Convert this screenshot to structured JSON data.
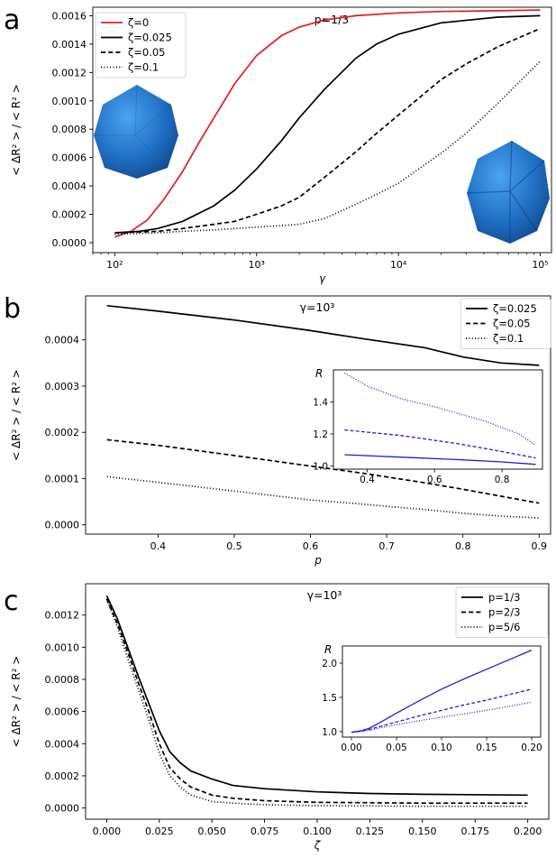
{
  "chart_data": [
    {
      "panel": "a",
      "type": "line",
      "title": "p=1/3",
      "xlabel": "γ",
      "ylabel": "< ΔR² > / < R² >",
      "xscale": "log",
      "xlim": [
        70,
        120000
      ],
      "ylim": [
        -7e-05,
        0.00166
      ],
      "x_tick_labels": [
        "10²",
        "10³",
        "10⁴",
        "10⁵"
      ],
      "x_ticks": [
        100,
        1000,
        10000,
        100000
      ],
      "y_ticks": [
        0.0,
        0.0002,
        0.0004,
        0.0006,
        0.0008,
        0.001,
        0.0012,
        0.0014,
        0.0016
      ],
      "y_tick_labels": [
        "0.0000",
        "0.0002",
        "0.0004",
        "0.0006",
        "0.0008",
        "0.0010",
        "0.0012",
        "0.0014",
        "0.0016"
      ],
      "legend_position": "top-left",
      "series": [
        {
          "name": "ζ=0",
          "color": "#e8191f",
          "dash": "solid",
          "x": [
            100,
            130,
            170,
            220,
            300,
            400,
            500,
            700,
            1000,
            1500,
            2000,
            3000,
            5000,
            10000,
            20000,
            50000,
            100000
          ],
          "y": [
            4e-05,
            8e-05,
            0.00016,
            0.0003,
            0.0005,
            0.00072,
            0.00088,
            0.00112,
            0.00132,
            0.00146,
            0.00152,
            0.00157,
            0.0016,
            0.00162,
            0.00163,
            0.001635,
            0.00164
          ]
        },
        {
          "name": "ζ=0.025",
          "color": "#000000",
          "dash": "solid",
          "x": [
            100,
            150,
            200,
            300,
            500,
            700,
            1000,
            1500,
            2000,
            3000,
            5000,
            7000,
            10000,
            20000,
            50000,
            100000
          ],
          "y": [
            7e-05,
            8e-05,
            0.0001,
            0.00015,
            0.00026,
            0.00037,
            0.00052,
            0.00072,
            0.00088,
            0.00108,
            0.0013,
            0.0014,
            0.00147,
            0.00155,
            0.00159,
            0.0016
          ]
        },
        {
          "name": "ζ=0.05",
          "color": "#000000",
          "dash": "dashed",
          "x": [
            100,
            200,
            300,
            500,
            700,
            1000,
            1500,
            2000,
            3000,
            5000,
            7000,
            10000,
            20000,
            30000,
            50000,
            100000
          ],
          "y": [
            7e-05,
            8e-05,
            0.0001,
            0.00013,
            0.00015,
            0.0002,
            0.00026,
            0.00032,
            0.00046,
            0.00064,
            0.00077,
            0.0009,
            0.00115,
            0.00126,
            0.00138,
            0.00151
          ]
        },
        {
          "name": "ζ=0.1",
          "color": "#000000",
          "dash": "dotted",
          "x": [
            100,
            200,
            300,
            500,
            700,
            1000,
            1500,
            2000,
            3000,
            5000,
            7000,
            10000,
            20000,
            30000,
            50000,
            100000
          ],
          "y": [
            6e-05,
            7e-05,
            8e-05,
            9e-05,
            0.0001,
            0.00011,
            0.00012,
            0.00013,
            0.00017,
            0.00027,
            0.00034,
            0.00042,
            0.00063,
            0.00077,
            0.00098,
            0.00128
          ]
        }
      ]
    },
    {
      "panel": "b",
      "type": "line",
      "title": "γ=10³",
      "xlabel": "p",
      "ylabel": "< ΔR² > / < R² >",
      "xlim": [
        0.305,
        0.915
      ],
      "ylim": [
        -2e-05,
        0.000495
      ],
      "x_ticks": [
        0.4,
        0.5,
        0.6,
        0.7,
        0.8,
        0.9
      ],
      "x_tick_labels": [
        "0.4",
        "0.5",
        "0.6",
        "0.7",
        "0.8",
        "0.9"
      ],
      "y_ticks": [
        0.0,
        0.0001,
        0.0002,
        0.0003,
        0.0004
      ],
      "y_tick_labels": [
        "0.0000",
        "0.0001",
        "0.0002",
        "0.0003",
        "0.0004"
      ],
      "legend_position": "top-right",
      "series": [
        {
          "name": "ζ=0.025",
          "color": "#000000",
          "dash": "solid",
          "x": [
            0.333,
            0.4,
            0.5,
            0.6,
            0.667,
            0.75,
            0.8,
            0.85,
            0.9
          ],
          "y": [
            0.000474,
            0.000462,
            0.000443,
            0.00042,
            0.000403,
            0.000383,
            0.000363,
            0.00035,
            0.000345
          ]
        },
        {
          "name": "ζ=0.05",
          "color": "#000000",
          "dash": "dashed",
          "x": [
            0.333,
            0.4,
            0.5,
            0.6,
            0.667,
            0.75,
            0.8,
            0.85,
            0.9
          ],
          "y": [
            0.000184,
            0.000172,
            0.00015,
            0.000127,
            0.000112,
            9.1e-05,
            7.7e-05,
            6.2e-05,
            4.7e-05
          ]
        },
        {
          "name": "ζ=0.1",
          "color": "#000000",
          "dash": "dotted",
          "x": [
            0.333,
            0.4,
            0.5,
            0.6,
            0.667,
            0.75,
            0.8,
            0.85,
            0.9
          ],
          "y": [
            0.000104,
            9.2e-05,
            7.3e-05,
            5.4e-05,
            4.5e-05,
            3.3e-05,
            2.5e-05,
            1.9e-05,
            1.5e-05
          ]
        }
      ],
      "inset": {
        "ylabel": "R",
        "xlim": [
          0.3,
          0.92
        ],
        "ylim": [
          0.98,
          1.6
        ],
        "x_ticks": [
          0.4,
          0.6,
          0.8
        ],
        "x_tick_labels": [
          "0.4",
          "0.6",
          "0.8"
        ],
        "y_ticks": [
          1.0,
          1.2,
          1.4
        ],
        "y_tick_labels": [
          "1.0",
          "1.2",
          "1.4"
        ],
        "series": [
          {
            "name": "ζ=0.025",
            "color": "#1f1fd6",
            "dash": "solid",
            "x": [
              0.333,
              0.5,
              0.667,
              0.8,
              0.9
            ],
            "y": [
              1.07,
              1.055,
              1.04,
              1.025,
              1.01
            ]
          },
          {
            "name": "ζ=0.05",
            "color": "#1f1fd6",
            "dash": "dashed",
            "x": [
              0.333,
              0.5,
              0.667,
              0.8,
              0.9
            ],
            "y": [
              1.225,
              1.19,
              1.14,
              1.09,
              1.05
            ]
          },
          {
            "name": "ζ=0.1",
            "color": "#1f1fd6",
            "dash": "dotted",
            "x": [
              0.333,
              0.4,
              0.5,
              0.6,
              0.667,
              0.75,
              0.8,
              0.85,
              0.9
            ],
            "y": [
              1.58,
              1.5,
              1.42,
              1.37,
              1.33,
              1.28,
              1.24,
              1.2,
              1.13
            ]
          }
        ]
      }
    },
    {
      "panel": "c",
      "type": "line",
      "title": "γ=10³",
      "xlabel": "ζ",
      "ylabel": "< ΔR² > / < R² >",
      "xlim": [
        -0.01,
        0.21
      ],
      "ylim": [
        -7e-05,
        0.001395
      ],
      "x_ticks": [
        0.0,
        0.025,
        0.05,
        0.075,
        0.1,
        0.125,
        0.15,
        0.175,
        0.2
      ],
      "x_tick_labels": [
        "0.000",
        "0.025",
        "0.050",
        "0.075",
        "0.100",
        "0.125",
        "0.150",
        "0.175",
        "0.200"
      ],
      "y_ticks": [
        0.0,
        0.0002,
        0.0004,
        0.0006,
        0.0008,
        0.001,
        0.0012
      ],
      "y_tick_labels": [
        "0.0000",
        "0.0002",
        "0.0004",
        "0.0006",
        "0.0008",
        "0.0010",
        "0.0012"
      ],
      "legend_position": "top-right",
      "series": [
        {
          "name": "p=1/3",
          "color": "#000000",
          "dash": "solid",
          "x": [
            0.0,
            0.005,
            0.01,
            0.015,
            0.02,
            0.025,
            0.03,
            0.035,
            0.04,
            0.05,
            0.06,
            0.075,
            0.1,
            0.125,
            0.15,
            0.2
          ],
          "y": [
            0.00132,
            0.00118,
            0.001,
            0.00082,
            0.00065,
            0.00048,
            0.00035,
            0.00028,
            0.00023,
            0.00018,
            0.00014,
            0.00012,
            0.0001,
            9e-05,
            8.5e-05,
            8e-05
          ]
        },
        {
          "name": "p=2/3",
          "color": "#000000",
          "dash": "dashed",
          "x": [
            0.0,
            0.005,
            0.01,
            0.015,
            0.02,
            0.025,
            0.03,
            0.035,
            0.04,
            0.05,
            0.06,
            0.075,
            0.1,
            0.15,
            0.2
          ],
          "y": [
            0.0013,
            0.00115,
            0.00097,
            0.00078,
            0.0006,
            0.0004,
            0.00025,
            0.00018,
            0.00013,
            8e-05,
            6e-05,
            4.5e-05,
            3.5e-05,
            3e-05,
            3e-05
          ]
        },
        {
          "name": "p=5/6",
          "color": "#000000",
          "dash": "dotted",
          "x": [
            0.0,
            0.005,
            0.01,
            0.015,
            0.02,
            0.025,
            0.03,
            0.035,
            0.04,
            0.05,
            0.06,
            0.075,
            0.1,
            0.15,
            0.2
          ],
          "y": [
            0.0013,
            0.00113,
            0.00093,
            0.00074,
            0.00055,
            0.00034,
            0.0002,
            0.00013,
            8e-05,
            4e-05,
            3e-05,
            2e-05,
            1.5e-05,
            1e-05,
            1e-05
          ]
        }
      ],
      "inset": {
        "ylabel": "R",
        "xlim": [
          -0.01,
          0.21
        ],
        "ylim": [
          0.92,
          2.25
        ],
        "x_ticks": [
          0.0,
          0.05,
          0.1,
          0.15,
          0.2
        ],
        "x_tick_labels": [
          "0.00",
          "0.05",
          "0.10",
          "0.15",
          "0.20"
        ],
        "y_ticks": [
          1.0,
          1.5,
          2.0
        ],
        "y_tick_labels": [
          "1.0",
          "1.5",
          "2.0"
        ],
        "series": [
          {
            "name": "p=1/3",
            "color": "#1f1fd6",
            "dash": "solid",
            "x": [
              0.0,
              0.01,
              0.02,
              0.03,
              0.05,
              0.075,
              0.1,
              0.125,
              0.15,
              0.175,
              0.2
            ],
            "y": [
              0.99,
              1.01,
              1.05,
              1.12,
              1.27,
              1.45,
              1.62,
              1.77,
              1.91,
              2.05,
              2.19
            ]
          },
          {
            "name": "p=2/3",
            "color": "#1f1fd6",
            "dash": "dashed",
            "x": [
              0.0,
              0.01,
              0.02,
              0.03,
              0.05,
              0.075,
              0.1,
              0.125,
              0.15,
              0.175,
              0.2
            ],
            "y": [
              0.99,
              1.01,
              1.03,
              1.07,
              1.14,
              1.23,
              1.31,
              1.39,
              1.46,
              1.54,
              1.62
            ]
          },
          {
            "name": "p=5/6",
            "color": "#1f1fd6",
            "dash": "dotted",
            "x": [
              0.0,
              0.01,
              0.02,
              0.03,
              0.05,
              0.075,
              0.1,
              0.125,
              0.15,
              0.175,
              0.2
            ],
            "y": [
              0.99,
              1.0,
              1.02,
              1.05,
              1.1,
              1.16,
              1.21,
              1.26,
              1.31,
              1.37,
              1.43
            ]
          }
        ]
      }
    }
  ],
  "panel_letters": [
    "a",
    "b",
    "c"
  ]
}
